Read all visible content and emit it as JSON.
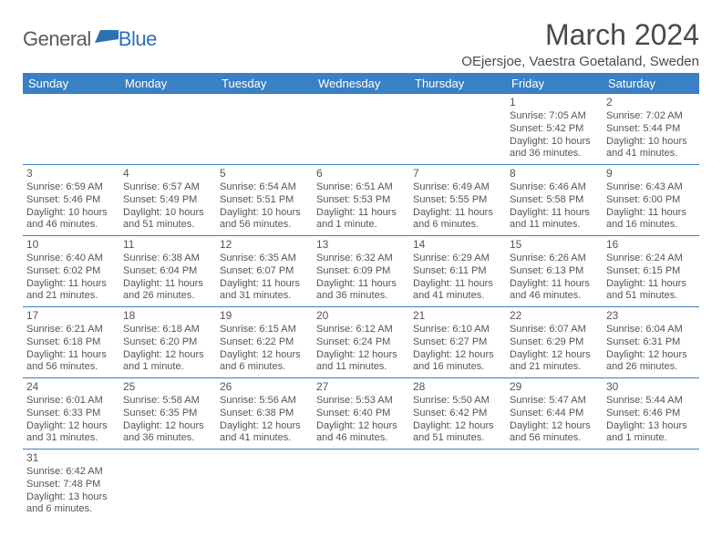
{
  "logo": {
    "general": "General",
    "blue": "Blue"
  },
  "title": "March 2024",
  "location": "OEjersjoe, Vaestra Goetaland, Sweden",
  "colors": {
    "header_bg": "#3a80c4",
    "header_text": "#ffffff",
    "border": "#3a80c4",
    "body_text": "#555555",
    "logo_blue": "#2d70b3",
    "logo_gray": "#5a5a5a"
  },
  "day_headers": [
    "Sunday",
    "Monday",
    "Tuesday",
    "Wednesday",
    "Thursday",
    "Friday",
    "Saturday"
  ],
  "weeks": [
    [
      null,
      null,
      null,
      null,
      null,
      {
        "n": "1",
        "sr": "Sunrise: 7:05 AM",
        "ss": "Sunset: 5:42 PM",
        "dl1": "Daylight: 10 hours",
        "dl2": "and 36 minutes."
      },
      {
        "n": "2",
        "sr": "Sunrise: 7:02 AM",
        "ss": "Sunset: 5:44 PM",
        "dl1": "Daylight: 10 hours",
        "dl2": "and 41 minutes."
      }
    ],
    [
      {
        "n": "3",
        "sr": "Sunrise: 6:59 AM",
        "ss": "Sunset: 5:46 PM",
        "dl1": "Daylight: 10 hours",
        "dl2": "and 46 minutes."
      },
      {
        "n": "4",
        "sr": "Sunrise: 6:57 AM",
        "ss": "Sunset: 5:49 PM",
        "dl1": "Daylight: 10 hours",
        "dl2": "and 51 minutes."
      },
      {
        "n": "5",
        "sr": "Sunrise: 6:54 AM",
        "ss": "Sunset: 5:51 PM",
        "dl1": "Daylight: 10 hours",
        "dl2": "and 56 minutes."
      },
      {
        "n": "6",
        "sr": "Sunrise: 6:51 AM",
        "ss": "Sunset: 5:53 PM",
        "dl1": "Daylight: 11 hours",
        "dl2": "and 1 minute."
      },
      {
        "n": "7",
        "sr": "Sunrise: 6:49 AM",
        "ss": "Sunset: 5:55 PM",
        "dl1": "Daylight: 11 hours",
        "dl2": "and 6 minutes."
      },
      {
        "n": "8",
        "sr": "Sunrise: 6:46 AM",
        "ss": "Sunset: 5:58 PM",
        "dl1": "Daylight: 11 hours",
        "dl2": "and 11 minutes."
      },
      {
        "n": "9",
        "sr": "Sunrise: 6:43 AM",
        "ss": "Sunset: 6:00 PM",
        "dl1": "Daylight: 11 hours",
        "dl2": "and 16 minutes."
      }
    ],
    [
      {
        "n": "10",
        "sr": "Sunrise: 6:40 AM",
        "ss": "Sunset: 6:02 PM",
        "dl1": "Daylight: 11 hours",
        "dl2": "and 21 minutes."
      },
      {
        "n": "11",
        "sr": "Sunrise: 6:38 AM",
        "ss": "Sunset: 6:04 PM",
        "dl1": "Daylight: 11 hours",
        "dl2": "and 26 minutes."
      },
      {
        "n": "12",
        "sr": "Sunrise: 6:35 AM",
        "ss": "Sunset: 6:07 PM",
        "dl1": "Daylight: 11 hours",
        "dl2": "and 31 minutes."
      },
      {
        "n": "13",
        "sr": "Sunrise: 6:32 AM",
        "ss": "Sunset: 6:09 PM",
        "dl1": "Daylight: 11 hours",
        "dl2": "and 36 minutes."
      },
      {
        "n": "14",
        "sr": "Sunrise: 6:29 AM",
        "ss": "Sunset: 6:11 PM",
        "dl1": "Daylight: 11 hours",
        "dl2": "and 41 minutes."
      },
      {
        "n": "15",
        "sr": "Sunrise: 6:26 AM",
        "ss": "Sunset: 6:13 PM",
        "dl1": "Daylight: 11 hours",
        "dl2": "and 46 minutes."
      },
      {
        "n": "16",
        "sr": "Sunrise: 6:24 AM",
        "ss": "Sunset: 6:15 PM",
        "dl1": "Daylight: 11 hours",
        "dl2": "and 51 minutes."
      }
    ],
    [
      {
        "n": "17",
        "sr": "Sunrise: 6:21 AM",
        "ss": "Sunset: 6:18 PM",
        "dl1": "Daylight: 11 hours",
        "dl2": "and 56 minutes."
      },
      {
        "n": "18",
        "sr": "Sunrise: 6:18 AM",
        "ss": "Sunset: 6:20 PM",
        "dl1": "Daylight: 12 hours",
        "dl2": "and 1 minute."
      },
      {
        "n": "19",
        "sr": "Sunrise: 6:15 AM",
        "ss": "Sunset: 6:22 PM",
        "dl1": "Daylight: 12 hours",
        "dl2": "and 6 minutes."
      },
      {
        "n": "20",
        "sr": "Sunrise: 6:12 AM",
        "ss": "Sunset: 6:24 PM",
        "dl1": "Daylight: 12 hours",
        "dl2": "and 11 minutes."
      },
      {
        "n": "21",
        "sr": "Sunrise: 6:10 AM",
        "ss": "Sunset: 6:27 PM",
        "dl1": "Daylight: 12 hours",
        "dl2": "and 16 minutes."
      },
      {
        "n": "22",
        "sr": "Sunrise: 6:07 AM",
        "ss": "Sunset: 6:29 PM",
        "dl1": "Daylight: 12 hours",
        "dl2": "and 21 minutes."
      },
      {
        "n": "23",
        "sr": "Sunrise: 6:04 AM",
        "ss": "Sunset: 6:31 PM",
        "dl1": "Daylight: 12 hours",
        "dl2": "and 26 minutes."
      }
    ],
    [
      {
        "n": "24",
        "sr": "Sunrise: 6:01 AM",
        "ss": "Sunset: 6:33 PM",
        "dl1": "Daylight: 12 hours",
        "dl2": "and 31 minutes."
      },
      {
        "n": "25",
        "sr": "Sunrise: 5:58 AM",
        "ss": "Sunset: 6:35 PM",
        "dl1": "Daylight: 12 hours",
        "dl2": "and 36 minutes."
      },
      {
        "n": "26",
        "sr": "Sunrise: 5:56 AM",
        "ss": "Sunset: 6:38 PM",
        "dl1": "Daylight: 12 hours",
        "dl2": "and 41 minutes."
      },
      {
        "n": "27",
        "sr": "Sunrise: 5:53 AM",
        "ss": "Sunset: 6:40 PM",
        "dl1": "Daylight: 12 hours",
        "dl2": "and 46 minutes."
      },
      {
        "n": "28",
        "sr": "Sunrise: 5:50 AM",
        "ss": "Sunset: 6:42 PM",
        "dl1": "Daylight: 12 hours",
        "dl2": "and 51 minutes."
      },
      {
        "n": "29",
        "sr": "Sunrise: 5:47 AM",
        "ss": "Sunset: 6:44 PM",
        "dl1": "Daylight: 12 hours",
        "dl2": "and 56 minutes."
      },
      {
        "n": "30",
        "sr": "Sunrise: 5:44 AM",
        "ss": "Sunset: 6:46 PM",
        "dl1": "Daylight: 13 hours",
        "dl2": "and 1 minute."
      }
    ],
    [
      {
        "n": "31",
        "sr": "Sunrise: 6:42 AM",
        "ss": "Sunset: 7:48 PM",
        "dl1": "Daylight: 13 hours",
        "dl2": "and 6 minutes."
      },
      null,
      null,
      null,
      null,
      null,
      null
    ]
  ]
}
